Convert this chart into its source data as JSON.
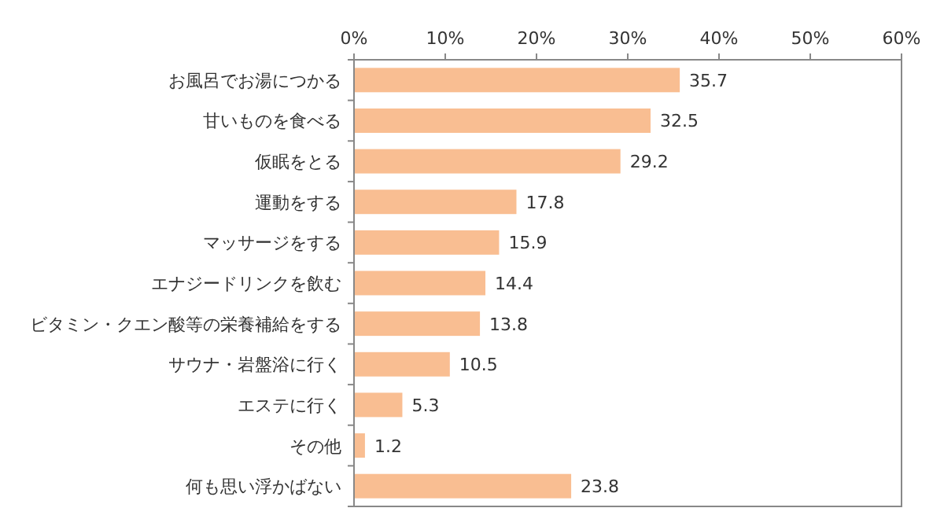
{
  "chart_data": {
    "type": "bar",
    "orientation": "horizontal",
    "categories": [
      "お風呂でお湯につかる",
      "甘いものを食べる",
      "仮眠をとる",
      "運動をする",
      "マッサージをする",
      "エナジードリンクを飲む",
      "ビタミン・クエン酸等の栄養補給をする",
      "サウナ・岩盤浴に行く",
      "エステに行く",
      "その他",
      "何も思い浮かばない"
    ],
    "values": [
      35.7,
      32.5,
      29.2,
      17.8,
      15.9,
      14.4,
      13.8,
      10.5,
      5.3,
      1.2,
      23.8
    ],
    "color": "#f9be92",
    "xlim": [
      0,
      60
    ],
    "xticks": [
      {
        "value": 0,
        "label": "0%"
      },
      {
        "value": 10,
        "label": "10%"
      },
      {
        "value": 20,
        "label": "20%"
      },
      {
        "value": 30,
        "label": "30%"
      },
      {
        "value": 40,
        "label": "40%"
      },
      {
        "value": 50,
        "label": "50%"
      },
      {
        "value": 60,
        "label": "60%"
      }
    ],
    "data_labels": true,
    "grid": false
  }
}
